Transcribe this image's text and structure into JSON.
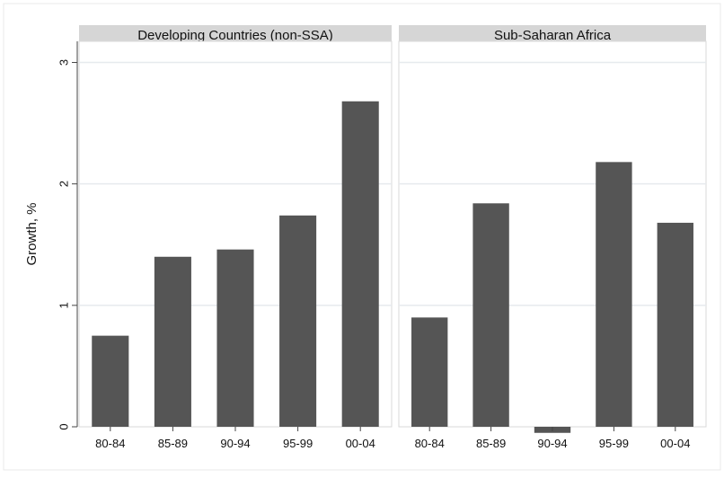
{
  "chart_data": {
    "type": "bar",
    "ylabel": "Growth, %",
    "xlabel": "",
    "ylim": [
      0,
      3.1
    ],
    "yticks": [
      0,
      1,
      2,
      3
    ],
    "grid": true,
    "categories": [
      "80-84",
      "85-89",
      "90-94",
      "95-99",
      "00-04"
    ],
    "panels": [
      {
        "title": "Developing Countries (non-SSA)",
        "values": [
          0.75,
          1.4,
          1.46,
          1.74,
          2.68
        ]
      },
      {
        "title": "Sub-Saharan Africa",
        "values": [
          0.9,
          1.84,
          -0.05,
          2.18,
          1.68
        ]
      }
    ]
  },
  "colors": {
    "bar": "#555555",
    "panel_bg": "#ffffff",
    "strip_bg": "#d6d6d6",
    "grid": "#e6eaee",
    "outer_bg": "#ffffff",
    "frame": "#eaeaea"
  }
}
